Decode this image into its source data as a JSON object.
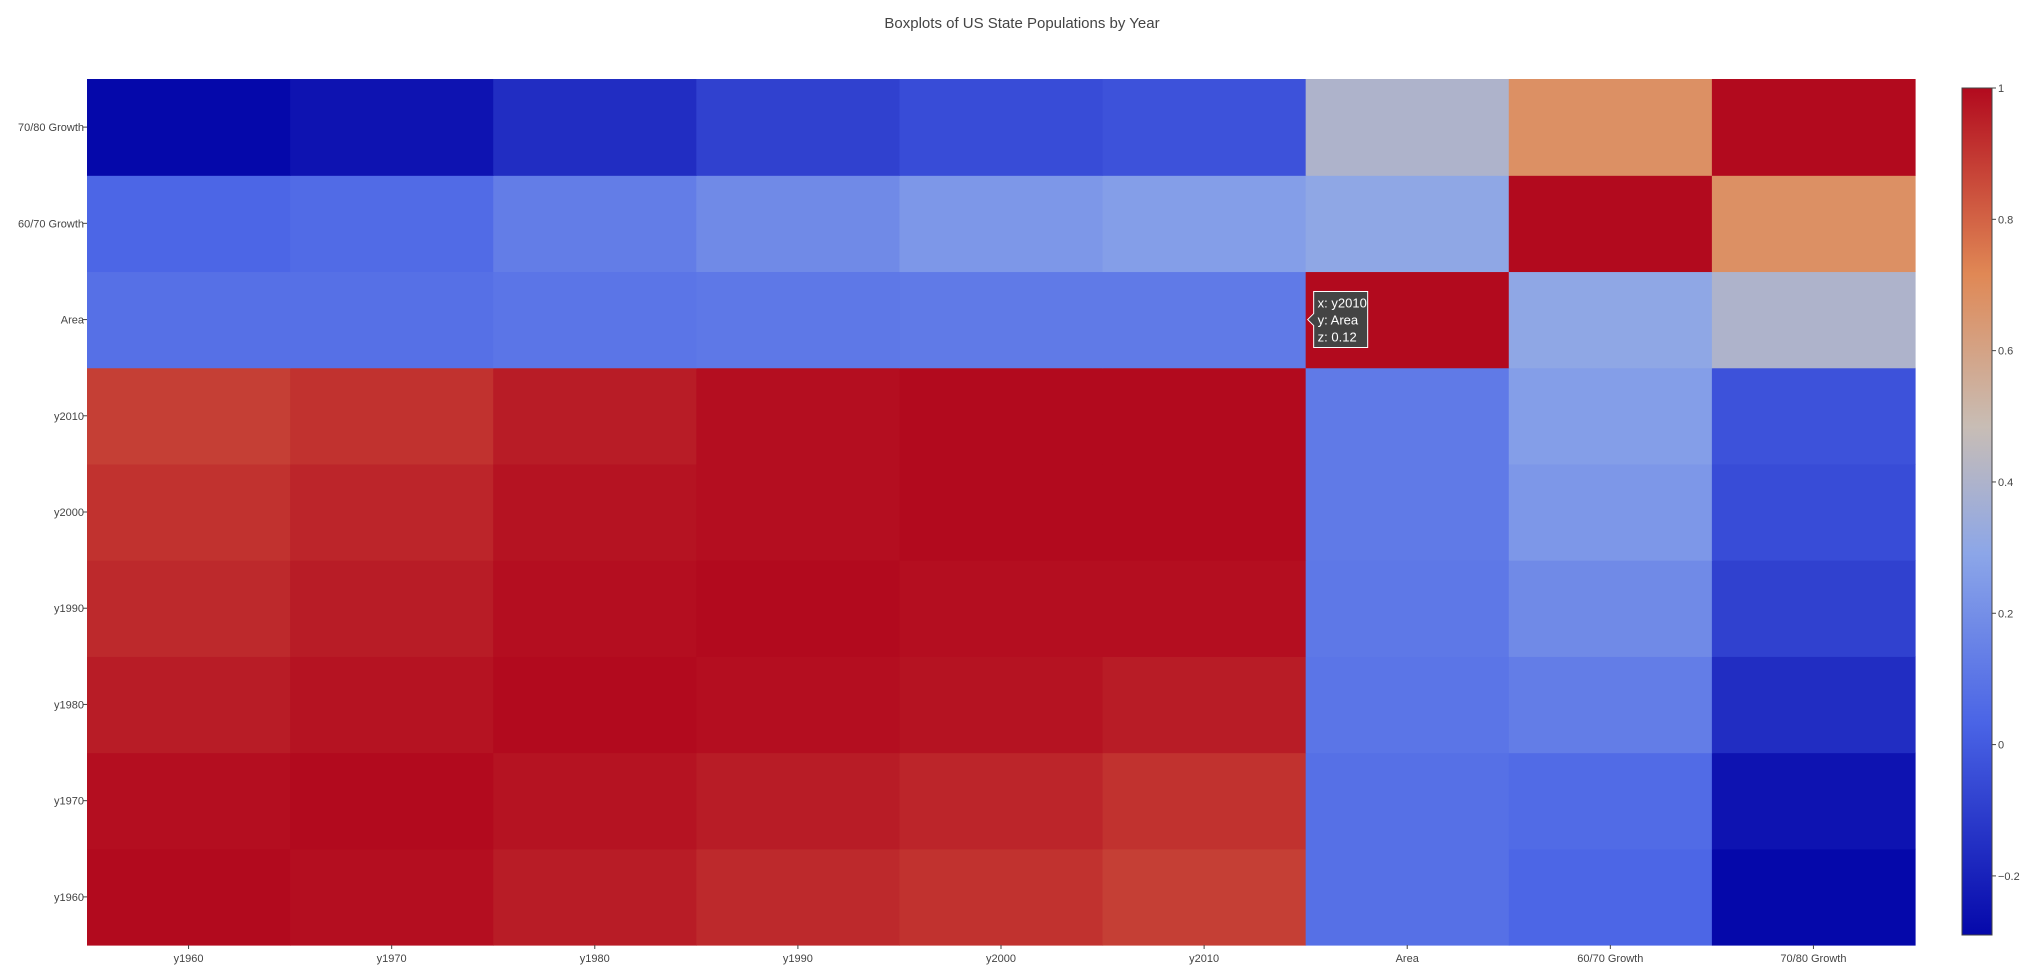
{
  "chart_data": {
    "type": "heatmap",
    "title": "Boxplots of US State Populations by Year",
    "x": [
      "y1960",
      "y1970",
      "y1980",
      "y1990",
      "y2000",
      "y2010",
      "Area",
      "60/70 Growth",
      "70/80 Growth"
    ],
    "y": [
      "y1960",
      "y1970",
      "y1980",
      "y1990",
      "y2000",
      "y2010",
      "Area",
      "60/70 Growth",
      "70/80 Growth"
    ],
    "z": [
      [
        1.0,
        0.99,
        0.96,
        0.93,
        0.91,
        0.88,
        0.08,
        0.04,
        -0.29
      ],
      [
        0.99,
        1.0,
        0.98,
        0.96,
        0.94,
        0.91,
        0.08,
        0.06,
        -0.25
      ],
      [
        0.96,
        0.98,
        1.0,
        0.99,
        0.98,
        0.96,
        0.1,
        0.13,
        -0.16
      ],
      [
        0.93,
        0.96,
        0.99,
        1.0,
        0.99,
        0.99,
        0.11,
        0.18,
        -0.09
      ],
      [
        0.91,
        0.94,
        0.98,
        0.99,
        1.0,
        1.0,
        0.12,
        0.23,
        -0.05
      ],
      [
        0.88,
        0.91,
        0.96,
        0.99,
        1.0,
        1.0,
        0.12,
        0.26,
        -0.03
      ],
      [
        0.08,
        0.08,
        0.1,
        0.11,
        0.12,
        0.12,
        1.0,
        0.3,
        0.4
      ],
      [
        0.04,
        0.06,
        0.13,
        0.18,
        0.23,
        0.26,
        0.3,
        1.0,
        0.68
      ],
      [
        -0.29,
        -0.25,
        -0.16,
        -0.09,
        -0.05,
        -0.03,
        0.4,
        0.68,
        1.0
      ]
    ],
    "zmin": -0.29,
    "zmax": 1.0,
    "colorbar_ticks": [
      1,
      0.8,
      0.6,
      0.4,
      0.2,
      0,
      -0.2
    ],
    "colorscale": "diverging blue-gray-red",
    "hover": {
      "x": "y2010",
      "y": "Area",
      "z": "0.12"
    }
  }
}
